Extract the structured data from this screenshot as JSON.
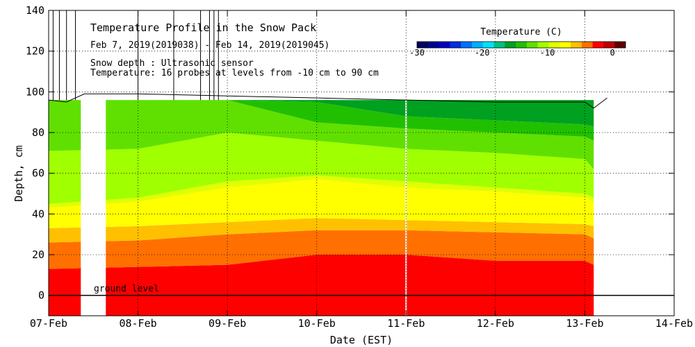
{
  "chart_data": {
    "type": "heatmap",
    "title": "Temperature Profile in the Snow Pack",
    "subtitle": "Feb  7, 2019(2019038) - Feb 14, 2019(2019045)",
    "notes": [
      "Snow depth : Ultrasonic sensor",
      "Temperature: 16 probes at levels from -10 cm to 90 cm"
    ],
    "xlabel": "Date (EST)",
    "ylabel": "Depth, cm",
    "x_ticks": [
      "07-Feb",
      "08-Feb",
      "09-Feb",
      "10-Feb",
      "11-Feb",
      "12-Feb",
      "13-Feb",
      "14-Feb"
    ],
    "x_range_days": [
      0,
      7
    ],
    "y_ticks": [
      0,
      20,
      40,
      60,
      80,
      100,
      120,
      140
    ],
    "ylim": [
      -10,
      140
    ],
    "grid": true,
    "ground_level_label": "ground level",
    "colorbar": {
      "title": "Temperature (C)",
      "ticks": [
        -30,
        -20,
        -10,
        0
      ],
      "range": [
        -30,
        2
      ],
      "colors": [
        "#000060",
        "#000090",
        "#0000c0",
        "#0030e0",
        "#0070ff",
        "#00b0ff",
        "#00e0ff",
        "#00c080",
        "#00a020",
        "#20c000",
        "#60e000",
        "#a0ff00",
        "#e0ff00",
        "#ffff00",
        "#ffc000",
        "#ff7000",
        "#ff0000",
        "#c00000",
        "#600000"
      ]
    },
    "snow_depth_cm": [
      {
        "day": 0.0,
        "depth": 96
      },
      {
        "day": 0.2,
        "depth": 95
      },
      {
        "day": 0.4,
        "depth": 99
      },
      {
        "day": 1.0,
        "depth": 99
      },
      {
        "day": 2.0,
        "depth": 98
      },
      {
        "day": 3.0,
        "depth": 97
      },
      {
        "day": 4.0,
        "depth": 96
      },
      {
        "day": 5.0,
        "depth": 95
      },
      {
        "day": 6.0,
        "depth": 95
      },
      {
        "day": 6.1,
        "depth": 92
      },
      {
        "day": 6.25,
        "depth": 97
      }
    ],
    "data_gap_days": [
      0.36,
      0.64
    ],
    "missing_line_day": 4.0,
    "temperature_bands": [
      {
        "temp": -1,
        "color": "#ff0000",
        "bottom": [
          -10,
          -10,
          -10,
          -10,
          -10,
          -10,
          -10,
          -10
        ],
        "top": [
          13,
          14,
          15,
          20,
          20,
          17,
          17,
          15
        ]
      },
      {
        "temp": -2,
        "color": "#ff7000",
        "bottom": [
          13,
          14,
          15,
          20,
          20,
          17,
          17,
          15
        ],
        "top": [
          26,
          27,
          30,
          32,
          32,
          31,
          30,
          28
        ]
      },
      {
        "temp": -3,
        "color": "#ffc000",
        "bottom": [
          26,
          27,
          30,
          32,
          32,
          31,
          30,
          28
        ],
        "top": [
          33,
          34,
          36,
          38,
          37,
          36,
          35,
          34
        ]
      },
      {
        "temp": -4,
        "color": "#ffff00",
        "bottom": [
          33,
          34,
          36,
          38,
          37,
          36,
          35,
          34
        ],
        "top": [
          43,
          46,
          53,
          57,
          53,
          51,
          48,
          46
        ]
      },
      {
        "temp": -5,
        "color": "#e0ff00",
        "bottom": [
          43,
          46,
          53,
          57,
          53,
          51,
          48,
          46
        ],
        "top": [
          45,
          48,
          56,
          59,
          56,
          53,
          50,
          48
        ]
      },
      {
        "temp": -6,
        "color": "#a0ff00",
        "bottom": [
          45,
          48,
          56,
          59,
          56,
          53,
          50,
          48
        ],
        "top": [
          71,
          72,
          80,
          76,
          72,
          70,
          67,
          62
        ]
      },
      {
        "temp": -7,
        "color": "#60e000",
        "bottom": [
          71,
          72,
          80,
          76,
          72,
          70,
          67,
          62
        ],
        "top": [
          96,
          96,
          96,
          85,
          82,
          80,
          78,
          76
        ]
      },
      {
        "temp": -8,
        "color": "#20c000",
        "bottom": [
          96,
          96,
          96,
          85,
          82,
          80,
          78,
          76
        ],
        "top": [
          96,
          96,
          96,
          95,
          88,
          86,
          84,
          83
        ]
      },
      {
        "temp": -9,
        "color": "#00a020",
        "bottom": [
          96,
          96,
          96,
          95,
          88,
          86,
          84,
          83
        ],
        "top": [
          96,
          96,
          96,
          96,
          96,
          96,
          96,
          96
        ]
      }
    ],
    "band_days": [
      0,
      1,
      2,
      3,
      4,
      5,
      6,
      6.1
    ]
  }
}
